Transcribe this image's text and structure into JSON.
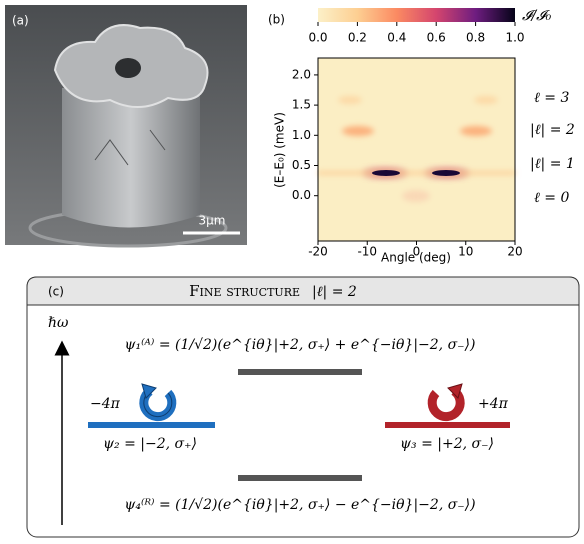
{
  "panels": {
    "a": {
      "label": "(a)",
      "scale_bar": "3μm"
    },
    "b": {
      "label": "(b)",
      "colorbar": {
        "label": "𝓘/𝓘₀",
        "lim": [
          0,
          1
        ],
        "ticks": [
          {
            "value": 0,
            "label": "0.0"
          },
          {
            "value": 0.2,
            "label": "0.2"
          },
          {
            "value": 0.4,
            "label": "0.4"
          },
          {
            "value": 0.6,
            "label": "0.6"
          },
          {
            "value": 0.8,
            "label": "0.8"
          },
          {
            "value": 1,
            "label": "1.0"
          }
        ]
      },
      "xlabel": "Angle (deg)",
      "ylabel": "(E–E₀) (meV)",
      "xlim": [
        -20,
        20
      ],
      "xticks": [
        -20,
        -10,
        0,
        10,
        20
      ],
      "ylim": [
        -0.75,
        2.28
      ],
      "yticks": [
        {
          "value": 0,
          "label": "0.0"
        },
        {
          "value": 0.5,
          "label": "0.5"
        },
        {
          "value": 1,
          "label": "1.0"
        },
        {
          "value": 1.5,
          "label": "1.5"
        },
        {
          "value": 2,
          "label": "2.0"
        }
      ],
      "mode_labels": [
        "ℓ = 3",
        "|ℓ| = 2",
        "|ℓ| = 1",
        "ℓ = 0"
      ]
    },
    "c": {
      "label": "(c)",
      "title": "Fine structure",
      "title_suffix": "|ℓ| = 2",
      "axis_label": "ℏω",
      "psi1": "ψ₁⁽ᴬ⁾ = (1/√2)(e^{iθ}|+2, σ₊⟩ + e^{−iθ}|−2, σ₋⟩)",
      "psi2": "ψ₂ = |−2, σ₊⟩",
      "psi3": "ψ₃ = |+2, σ₋⟩",
      "psi4": "ψ₄⁽ᴿ⁾ = (1/√2)(e^{iθ}|+2, σ₊⟩ − e^{−iθ}|−2, σ₋⟩)",
      "left_phase": "−4π",
      "right_phase": "+4π"
    }
  }
}
